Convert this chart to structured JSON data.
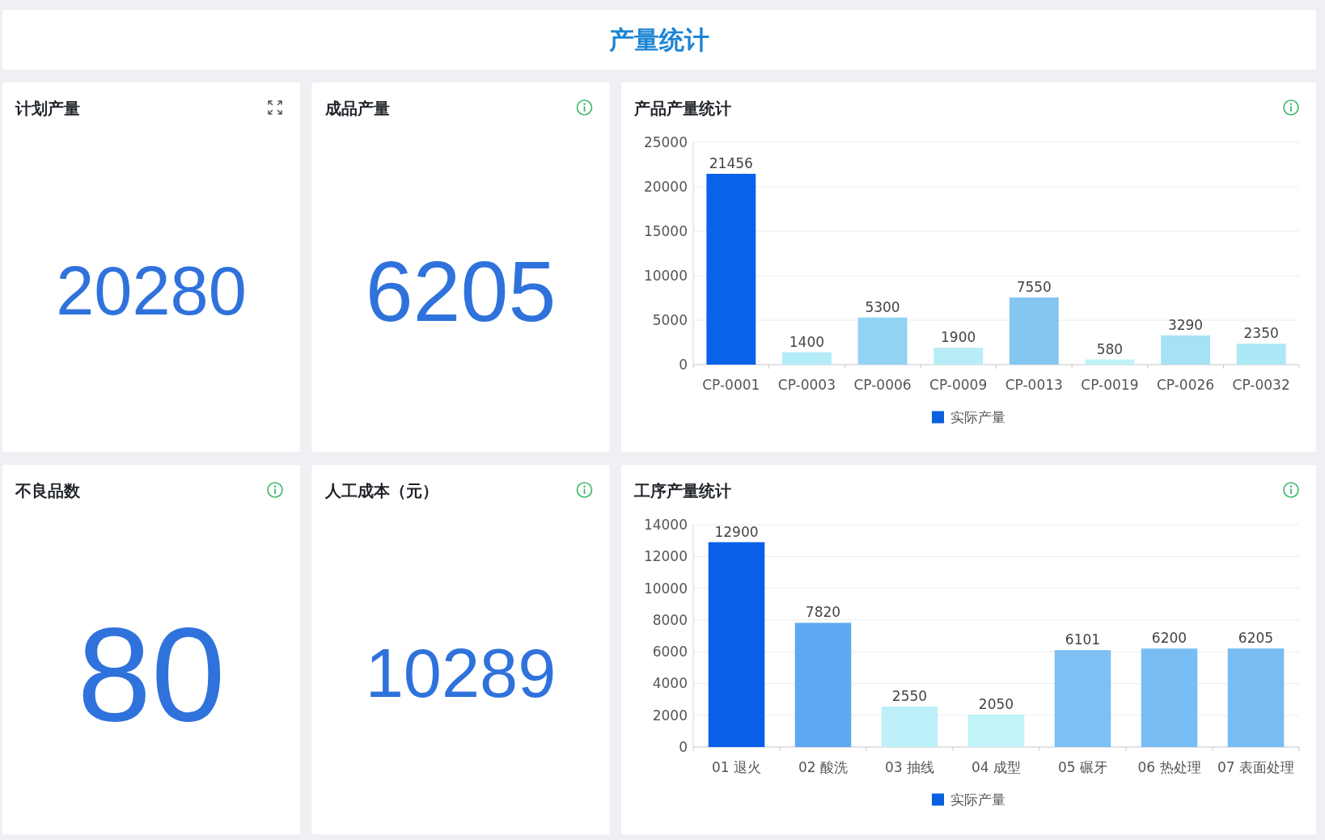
{
  "chart_data": [
    {
      "type": "other",
      "title": "产量统计"
    },
    {
      "type": "other",
      "title": "计划产量",
      "values": [
        20280
      ],
      "data_labels": true
    },
    {
      "type": "other",
      "title": "成品产量",
      "values": [
        6205
      ],
      "data_labels": true
    },
    {
      "type": "bar",
      "title": "产品产量统计",
      "categories": [
        "CP-0001",
        "CP-0003",
        "CP-0006",
        "CP-0009",
        "CP-0013",
        "CP-0019",
        "CP-0026",
        "CP-0032"
      ],
      "series": [
        {
          "name": "实际产量",
          "color": "#0a5fe0",
          "colors": [
            "#0862ea",
            "#b3ecf7",
            "#92d3f3",
            "#b8edf8",
            "#84c6f0",
            "#bff1f9",
            "#a6e2f5",
            "#ade8f7"
          ],
          "values": [
            21456,
            1400,
            5300,
            1900,
            7550,
            580,
            3290,
            2350
          ]
        }
      ],
      "ylim": [
        0,
        25000
      ],
      "yticks": [
        0,
        5000,
        10000,
        15000,
        20000,
        25000
      ],
      "grid": "y",
      "legend": "bottom",
      "data_labels": true
    },
    {
      "type": "other",
      "title": "不良品数",
      "values": [
        80
      ],
      "data_labels": true
    },
    {
      "type": "other",
      "title": "人工成本（元）",
      "values": [
        10289
      ],
      "data_labels": true
    },
    {
      "type": "bar",
      "title": "工序产量统计",
      "categories": [
        "01 退火",
        "02 酸洗",
        "03 抽线",
        "04 成型",
        "05 碾牙",
        "06 热处理",
        "07 表面处理"
      ],
      "series": [
        {
          "name": "实际产量",
          "color": "#0a5fe0",
          "colors": [
            "#0a5fe8",
            "#5ea8f2",
            "#bdf0f8",
            "#c2f3f9",
            "#7cc0f5",
            "#78bdf4",
            "#77bdf3"
          ],
          "values": [
            12900,
            7820,
            2550,
            2050,
            6101,
            6200,
            6205
          ]
        }
      ],
      "ylim": [
        0,
        14000
      ],
      "yticks": [
        0,
        2000,
        4000,
        6000,
        8000,
        10000,
        12000,
        14000
      ],
      "grid": "y",
      "legend": "bottom",
      "data_labels": true
    }
  ]
}
